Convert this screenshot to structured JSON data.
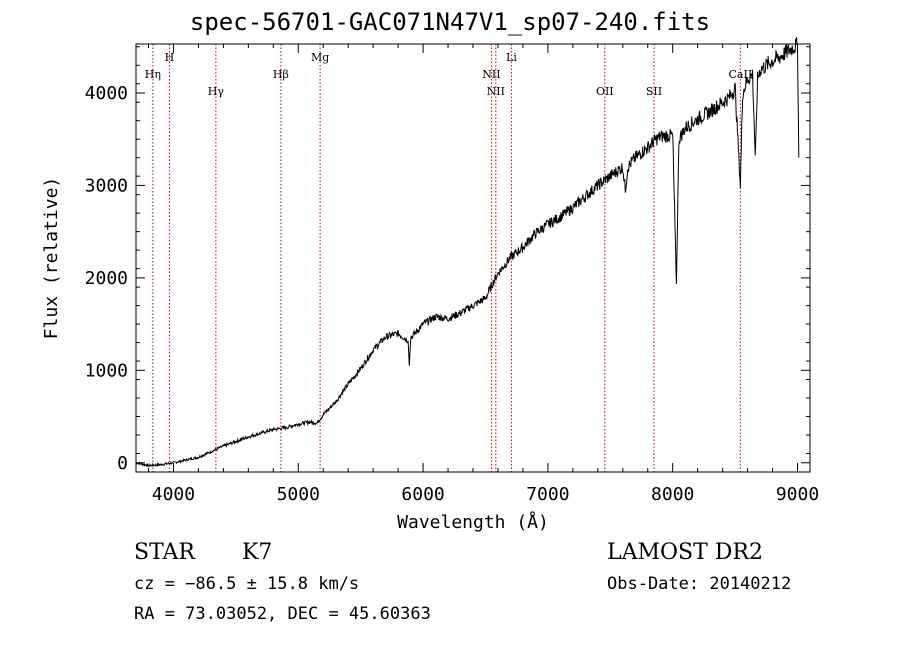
{
  "header": {
    "title": "spec-56701-GAC071N47V1_sp07-240.fits"
  },
  "info": {
    "class": "STAR",
    "subclass": "K7",
    "survey": "LAMOST DR2",
    "redshift": "cz = −86.5 ± 15.8 km/s",
    "obs_date": "Obs-Date: 20140212",
    "coords": "RA =  73.03052, DEC =  45.60363"
  },
  "colors": {
    "line": "#000000",
    "marker": "#cc0000",
    "background": "#ffffff"
  },
  "chart_data": {
    "type": "line",
    "xlabel": "Wavelength (Å)",
    "ylabel": "Flux (relative)",
    "xlim": [
      3700,
      9100
    ],
    "ylim": [
      -100,
      4530
    ],
    "xticks": [
      4000,
      5000,
      6000,
      7000,
      8000,
      9000
    ],
    "yticks": [
      0,
      1000,
      2000,
      3000,
      4000
    ],
    "grid": false,
    "series": [
      {
        "x": [
          3700,
          3800,
          3900,
          4000,
          4100,
          4200,
          4300,
          4400,
          4500,
          4600,
          4700,
          4800,
          4900,
          5000,
          5100,
          5150,
          5200,
          5300,
          5400,
          5500,
          5600,
          5700,
          5800,
          5880,
          5890,
          5900,
          6000,
          6100,
          6200,
          6300,
          6400,
          6500,
          6550,
          6600,
          6700,
          6800,
          6900,
          7000,
          7100,
          7200,
          7300,
          7400,
          7500,
          7600,
          7620,
          7640,
          7700,
          7800,
          7850,
          7900,
          8000,
          8030,
          8050,
          8100,
          8200,
          8300,
          8400,
          8450,
          8500,
          8542,
          8560,
          8600,
          8640,
          8662,
          8680,
          8700,
          8800,
          8850,
          8900,
          8950,
          9000,
          9010
        ],
        "y": [
          0,
          -30,
          -20,
          0,
          30,
          60,
          120,
          180,
          230,
          280,
          320,
          360,
          380,
          420,
          440,
          430,
          520,
          660,
          850,
          1020,
          1220,
          1360,
          1400,
          1320,
          1050,
          1350,
          1500,
          1580,
          1560,
          1620,
          1700,
          1780,
          1920,
          2050,
          2220,
          2330,
          2480,
          2580,
          2660,
          2760,
          2880,
          3000,
          3100,
          3200,
          2950,
          3200,
          3300,
          3410,
          3480,
          3530,
          3540,
          1920,
          3500,
          3620,
          3720,
          3800,
          3900,
          3950,
          4050,
          3000,
          4000,
          4150,
          4200,
          3280,
          4150,
          4250,
          4350,
          4380,
          4430,
          4480,
          4520,
          3300
        ]
      }
    ],
    "markers": [
      {
        "label": "Hη",
        "x": 3835,
        "row": 1
      },
      {
        "label": "H",
        "x": 3968,
        "row": 0
      },
      {
        "label": "Hγ",
        "x": 4340,
        "row": 2
      },
      {
        "label": "Hβ",
        "x": 4861,
        "row": 1
      },
      {
        "label": "Mg",
        "x": 5175,
        "row": 0
      },
      {
        "label": "NII",
        "x": 6548,
        "row": 1
      },
      {
        "label": "NII",
        "x": 6583,
        "row": 2
      },
      {
        "label": "Li",
        "x": 6708,
        "row": 0
      },
      {
        "label": "OII",
        "x": 7456,
        "row": 2
      },
      {
        "label": "SII",
        "x": 7850,
        "row": 2
      },
      {
        "label": "CaII",
        "x": 8542,
        "row": 1
      }
    ]
  }
}
